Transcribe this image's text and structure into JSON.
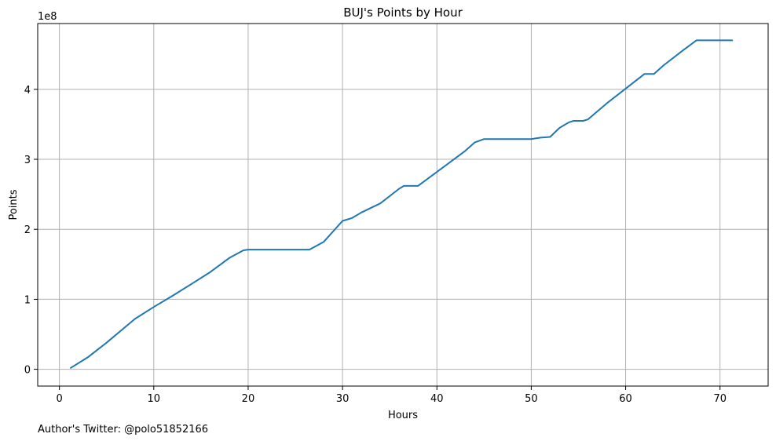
{
  "chart_data": {
    "type": "line",
    "title": "BUJ's Points by Hour",
    "xlabel": "Hours",
    "ylabel": "Points",
    "offset_label": "1e8",
    "footer": "Author's Twitter: @polo51852166",
    "xlim": [
      -2.3,
      75.1
    ],
    "ylim": [
      -0.24,
      4.94
    ],
    "xticks": [
      0,
      10,
      20,
      30,
      40,
      50,
      60,
      70
    ],
    "yticks": [
      0,
      1,
      2,
      3,
      4
    ],
    "grid": true,
    "line_color": "#1f77b4",
    "series": [
      {
        "x": [
          1.2,
          3.0,
          5.0,
          8.0,
          10.0,
          12.0,
          14.0,
          16.0,
          18.0,
          19.5,
          20.0,
          26.5,
          28.0,
          30.0,
          31.0,
          32.0,
          34.0,
          36.0,
          36.5,
          38.0,
          40.0,
          41.0,
          43.0,
          44.0,
          45.0,
          50.0,
          50.5,
          51.0,
          52.0,
          53.0,
          54.0,
          54.5,
          55.5,
          56.0,
          58.0,
          60.0,
          62.0,
          63.0,
          64.0,
          66.0,
          67.5,
          71.3
        ],
        "y": [
          0.02,
          0.17,
          0.38,
          0.72,
          0.89,
          1.05,
          1.22,
          1.39,
          1.59,
          1.7,
          1.71,
          1.71,
          1.82,
          2.12,
          2.16,
          2.24,
          2.37,
          2.58,
          2.62,
          2.62,
          2.82,
          2.92,
          3.12,
          3.24,
          3.29,
          3.29,
          3.3,
          3.31,
          3.32,
          3.45,
          3.53,
          3.55,
          3.55,
          3.57,
          3.8,
          4.01,
          4.22,
          4.22,
          4.34,
          4.55,
          4.7,
          4.7
        ]
      }
    ]
  }
}
